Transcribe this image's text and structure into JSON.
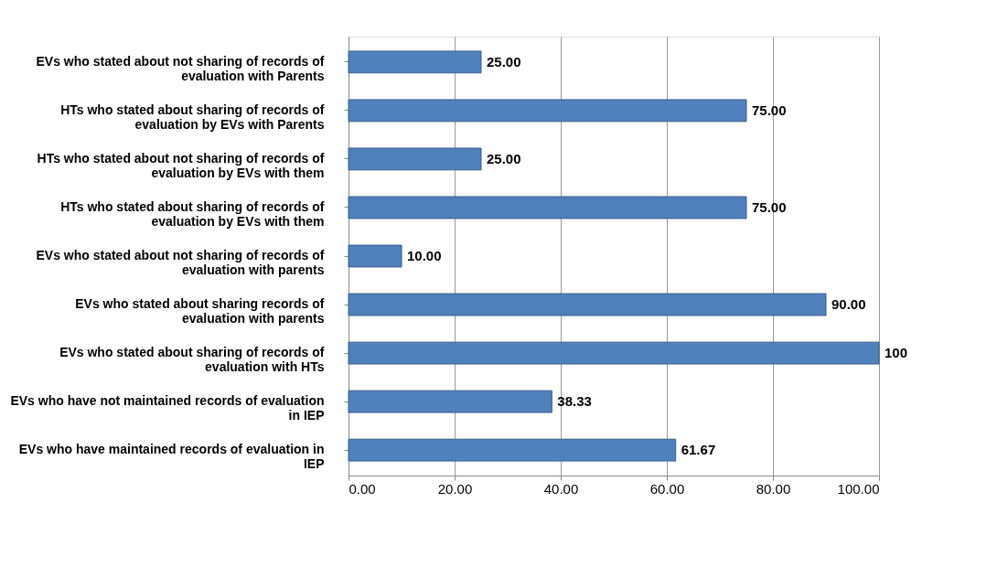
{
  "chart_data": {
    "type": "bar",
    "orientation": "horizontal",
    "categories": [
      "EVs who stated about not  sharing of  records of\nevaluation with  Parents",
      "HTs who stated about sharing of records of\nevaluation  by EVs with Parents",
      "HTs who stated about not sharing of records of\nevaluation  by EVs with them",
      "HTs who stated about sharing of records of\nevaluation  by EVs with them",
      "EVs who stated about not  sharing of  records of\nevaluation with parents",
      "EVs  who stated about sharing records of\nevaluation with parents",
      "EVs who stated about sharing of records of\nevaluation with HTs",
      "EVs who have not maintained records of evaluation\nin IEP",
      "EVs who have maintained records of evaluation in\nIEP"
    ],
    "values": [
      25,
      75,
      25,
      75,
      10,
      90,
      100,
      38.33,
      61.67
    ],
    "value_labels": [
      "25.00",
      "75.00",
      "25.00",
      "75.00",
      "10.00",
      "90.00",
      "100",
      "38.33",
      "61.67"
    ],
    "color": "#4f81bd",
    "xlim": [
      0,
      100
    ],
    "xticks": [
      {
        "value": 0,
        "label": "0.00"
      },
      {
        "value": 20,
        "label": "20.00"
      },
      {
        "value": 40,
        "label": "40.00"
      },
      {
        "value": 60,
        "label": "60.00"
      },
      {
        "value": 80,
        "label": "80.00"
      },
      {
        "value": 100,
        "label": "100.00"
      }
    ],
    "grid": "x"
  }
}
